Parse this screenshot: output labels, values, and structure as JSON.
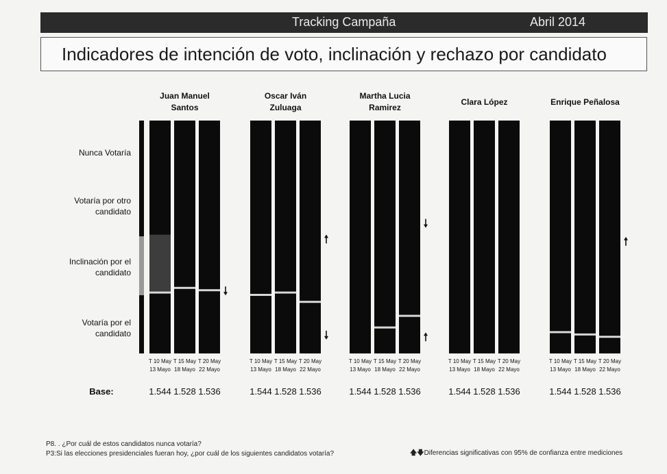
{
  "header": {
    "left_title": "Tracking Campaña",
    "right_title": "Abril 2014"
  },
  "main_title": "Indicadores de intención de voto, inclinación y rechazo por candidato",
  "chart_data": {
    "type": "bar",
    "stacked": true,
    "row_labels": [
      "Nunca Votaría",
      "Votaría por otro candidato",
      "Inclinación por el candidato",
      "Votaría por el candidato"
    ],
    "base_label": "Base:",
    "candidates": [
      {
        "name": "Juan Manuel Santos",
        "periods": [
          {
            "line1": "T 10 May",
            "line2": "13 Mayo",
            "base": "1.544",
            "vote": 26,
            "incl": 25
          },
          {
            "line1": "T 15 May",
            "line2": "18 Mayo",
            "base": "1.528",
            "vote": 28,
            "incl": 0
          },
          {
            "line1": "T 20 May",
            "line2": "22 Mayo",
            "base": "1.536",
            "vote": 27,
            "incl": 0
          }
        ],
        "arrow": {
          "dir": "down",
          "pos": 0.73
        }
      },
      {
        "name": "Oscar Iván Zuluaga",
        "periods": [
          {
            "line1": "T 10 May",
            "line2": "13 Mayo",
            "base": "1.544",
            "vote": 25,
            "incl": 0
          },
          {
            "line1": "T 15 May",
            "line2": "18 Mayo",
            "base": "1.528",
            "vote": 26,
            "incl": 0
          },
          {
            "line1": "T 20 May",
            "line2": "22 Mayo",
            "base": "1.536",
            "vote": 22,
            "incl": 0
          }
        ],
        "arrow_up": {
          "dir": "up",
          "pos": 0.51
        },
        "arrow_down": {
          "dir": "down",
          "pos": 0.92
        }
      },
      {
        "name": "Martha Lucia Ramirez",
        "periods": [
          {
            "line1": "T 10 May",
            "line2": "13 Mayo",
            "base": "1.544",
            "vote": 0,
            "incl": 0
          },
          {
            "line1": "T 15 May",
            "line2": "18 Mayo",
            "base": "1.528",
            "vote": 11,
            "incl": 0
          },
          {
            "line1": "T 20 May",
            "line2": "22 Mayo",
            "base": "1.536",
            "vote": 16,
            "incl": 0
          }
        ],
        "arrow_down": {
          "dir": "down",
          "pos": 0.44
        },
        "arrow_up": {
          "dir": "up",
          "pos": 0.93
        }
      },
      {
        "name": "Clara López",
        "periods": [
          {
            "line1": "T 10 May",
            "line2": "13 Mayo",
            "base": "1.544",
            "vote": 0,
            "incl": 0
          },
          {
            "line1": "T 15 May",
            "line2": "18 Mayo",
            "base": "1.528",
            "vote": 0,
            "incl": 0
          },
          {
            "line1": "T 20 May",
            "line2": "22 Mayo",
            "base": "1.536",
            "vote": 0,
            "incl": 0
          }
        ]
      },
      {
        "name": "Enrique Peñalosa",
        "periods": [
          {
            "line1": "T 10 May",
            "line2": "13 Mayo",
            "base": "1.544",
            "vote": 9,
            "incl": 0
          },
          {
            "line1": "T 15 May",
            "line2": "18 Mayo",
            "base": "1.528",
            "vote": 8,
            "incl": 0
          },
          {
            "line1": "T 20 May",
            "line2": "22 Mayo",
            "base": "1.536",
            "vote": 7,
            "incl": 0
          }
        ],
        "arrow": {
          "dir": "up",
          "pos": 0.52
        }
      }
    ]
  },
  "footnotes": {
    "p8": "P8. . ¿Por cuál de estos candidatos nunca votaría?",
    "p3": "P3:Si las elecciones presidenciales fueran hoy, ¿por cuál de los siguientes candidatos votaría?",
    "legend": "Diferencias significativas con 95% de confianza entre mediciones"
  },
  "colors": {
    "bar": "#0b0b0b",
    "vote_line": "#d8d8d8",
    "incl": "#9a9a9a"
  }
}
